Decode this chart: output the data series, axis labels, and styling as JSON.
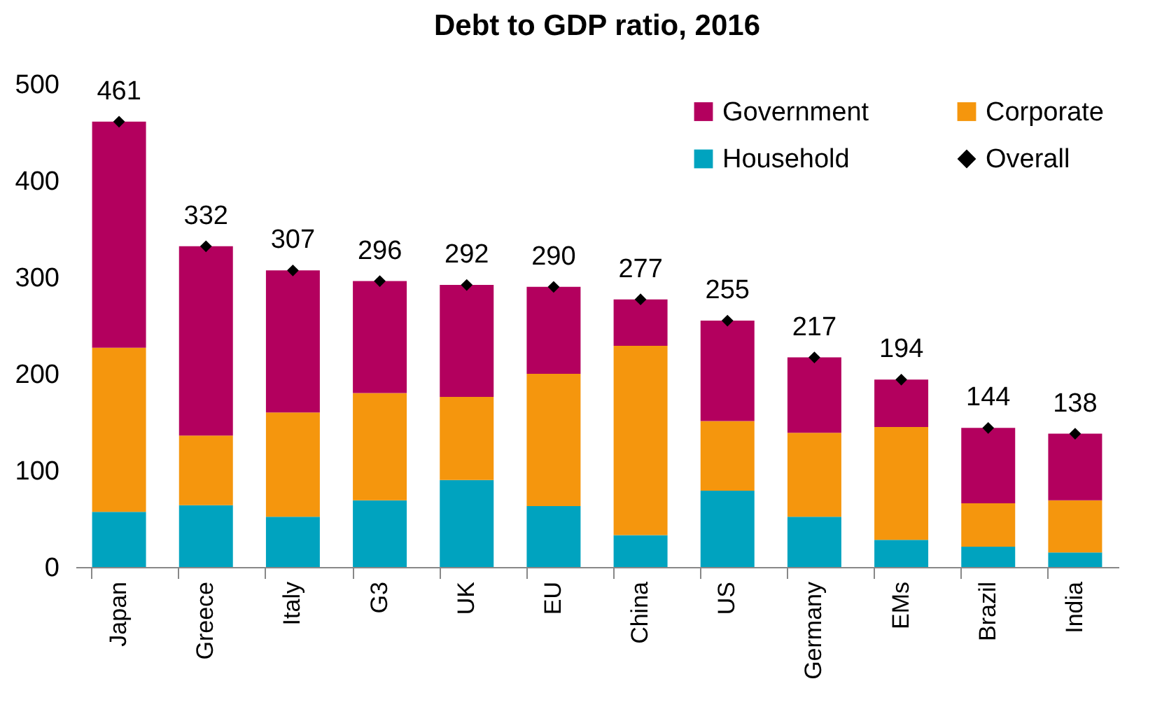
{
  "chart_data": {
    "type": "bar",
    "title": "Debt to GDP ratio, 2016",
    "stacked": true,
    "categories": [
      "Japan",
      "Greece",
      "Italy",
      "G3",
      "UK",
      "EU",
      "China",
      "US",
      "Germany",
      "EMs",
      "Brazil",
      "India"
    ],
    "series": [
      {
        "name": "Household",
        "color": "#00a3bf",
        "values": [
          57,
          64,
          52,
          69,
          90,
          63,
          33,
          79,
          52,
          28,
          21,
          15
        ]
      },
      {
        "name": "Corporate",
        "color": "#f5960d",
        "values": [
          170,
          72,
          108,
          111,
          86,
          137,
          196,
          72,
          87,
          117,
          45,
          54
        ]
      },
      {
        "name": "Government",
        "color": "#b3005e",
        "values": [
          234,
          196,
          147,
          116,
          116,
          90,
          48,
          104,
          78,
          49,
          78,
          69
        ]
      },
      {
        "name": "Overall",
        "type": "scatter",
        "marker": "diamond",
        "color": "#000000",
        "x": [
          "Japan",
          "Greece",
          "Italy",
          "G3",
          "UK",
          "EU",
          "China",
          "US",
          "Germany",
          "EMs",
          "Brazil",
          "India"
        ],
        "values": [
          461,
          332,
          307,
          296,
          292,
          290,
          277,
          255,
          217,
          194,
          144,
          138
        ],
        "value_labels": [
          "461",
          "332",
          "307",
          "296",
          "292",
          "290",
          "277",
          "255",
          "217",
          "194",
          "144",
          "138"
        ]
      }
    ],
    "ylim": [
      0,
      500
    ],
    "yticks": [
      0,
      100,
      200,
      300,
      400,
      500
    ],
    "grid": false,
    "legend": "top right"
  }
}
